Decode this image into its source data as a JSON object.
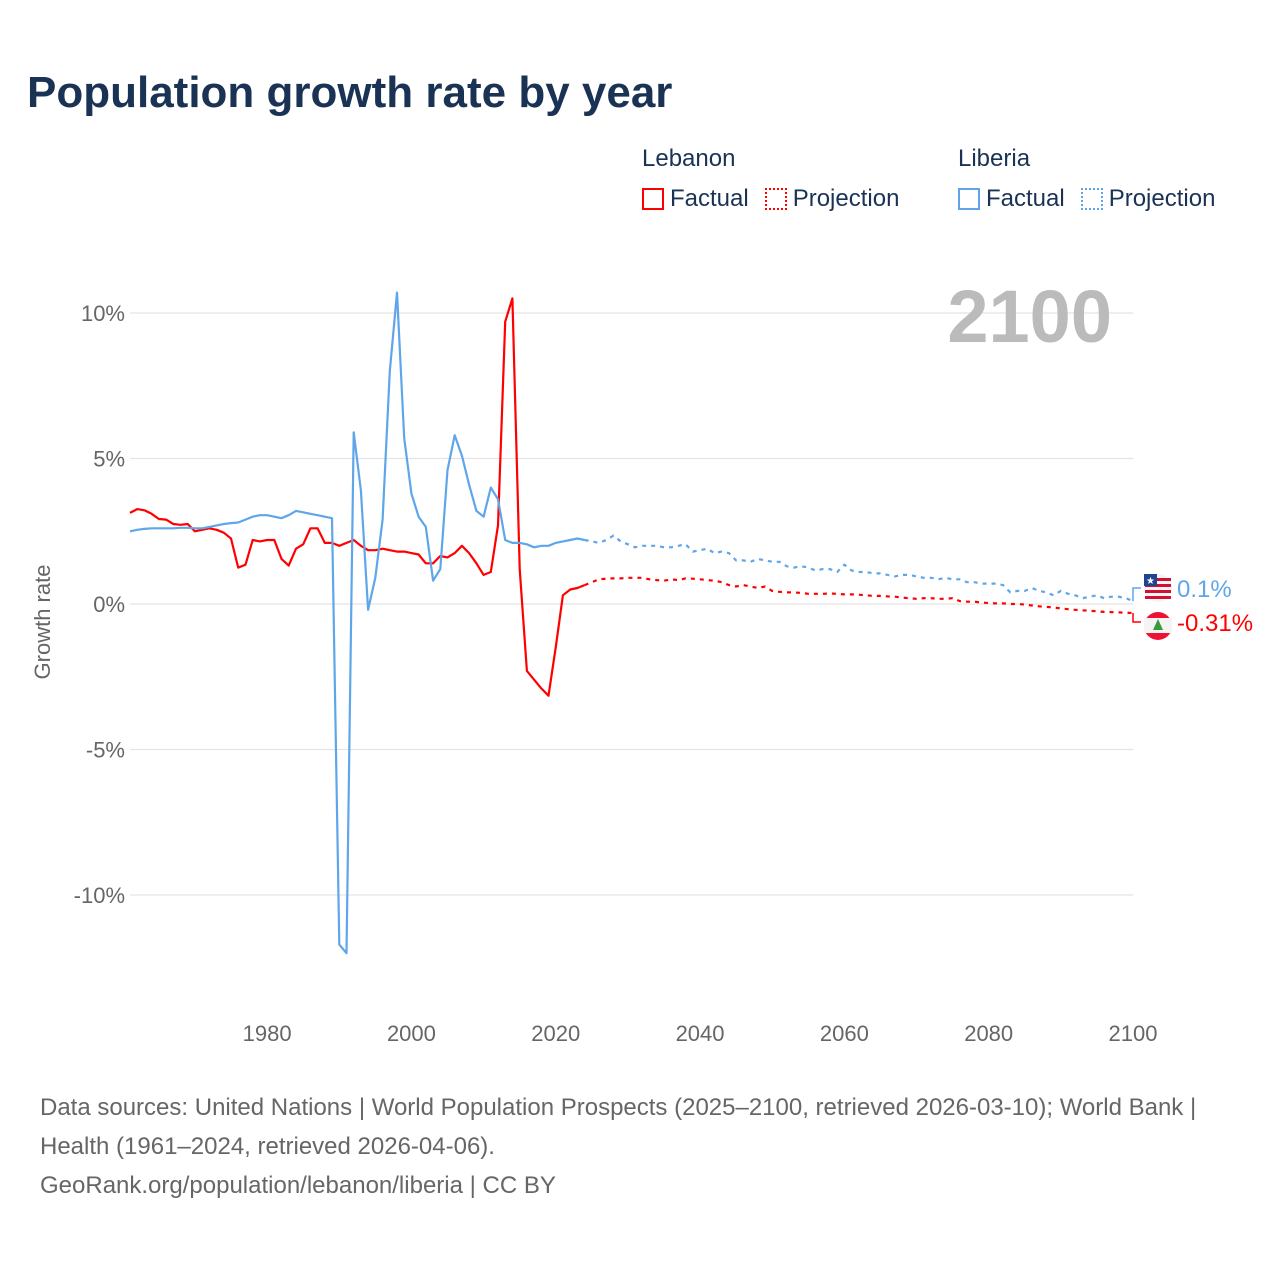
{
  "title": "Population growth rate by year",
  "legend": [
    {
      "country": "Lebanon",
      "color": "#ff0000",
      "factual_label": "Factual",
      "projection_label": "Projection"
    },
    {
      "country": "Liberia",
      "color": "#5ea6e9",
      "factual_label": "Factual",
      "projection_label": "Projection"
    }
  ],
  "year_display": "2100",
  "chart_data": {
    "type": "line",
    "title": "Population growth rate by year",
    "xlabel": "",
    "ylabel": "Growth rate",
    "xlim": [
      1961,
      2100
    ],
    "ylim": [
      -13,
      11.5
    ],
    "x_ticks": [
      1980,
      2000,
      2020,
      2040,
      2060,
      2080,
      2100
    ],
    "x_tick_labels": [
      "1980",
      "2000",
      "2020",
      "2040",
      "2060",
      "2080",
      "2100"
    ],
    "y_ticks": [
      10,
      5,
      0,
      -5,
      -10
    ],
    "y_tick_labels": [
      "10%",
      "5%",
      "0%",
      "-5%",
      "-10%"
    ],
    "grid": true,
    "series": [
      {
        "name": "Lebanon",
        "color": "#ff0000",
        "end_label": "-0.31%",
        "factual_start": 1961,
        "factual": [
          3.13,
          3.26,
          3.22,
          3.1,
          2.92,
          2.9,
          2.75,
          2.72,
          2.75,
          2.5,
          2.55,
          2.6,
          2.55,
          2.45,
          2.25,
          1.25,
          1.35,
          2.2,
          2.15,
          2.2,
          2.2,
          1.55,
          1.32,
          1.9,
          2.05,
          2.6,
          2.6,
          2.1,
          2.1,
          2.0,
          2.1,
          2.2,
          2.0,
          1.85,
          1.85,
          1.9,
          1.85,
          1.8,
          1.8,
          1.75,
          1.7,
          1.4,
          1.4,
          1.65,
          1.6,
          1.75,
          2.0,
          1.75,
          1.4,
          1.0,
          1.1,
          2.7,
          9.7,
          10.5,
          1.2,
          -2.3,
          -2.6,
          -2.9,
          -3.15,
          -1.5,
          0.3,
          0.5,
          0.55,
          0.65
        ],
        "projection_start": 2025,
        "projection": [
          0.75,
          0.85,
          0.87,
          0.88,
          0.88,
          0.9,
          0.9,
          0.9,
          0.85,
          0.82,
          0.8,
          0.85,
          0.82,
          0.88,
          0.87,
          0.85,
          0.82,
          0.8,
          0.75,
          0.65,
          0.6,
          0.65,
          0.6,
          0.55,
          0.6,
          0.45,
          0.42,
          0.4,
          0.4,
          0.38,
          0.35,
          0.35,
          0.35,
          0.36,
          0.35,
          0.33,
          0.33,
          0.32,
          0.3,
          0.28,
          0.28,
          0.26,
          0.25,
          0.22,
          0.2,
          0.18,
          0.2,
          0.2,
          0.18,
          0.18,
          0.2,
          0.1,
          0.08,
          0.08,
          0.05,
          0.03,
          0.02,
          0.02,
          0.0,
          0.0,
          -0.02,
          -0.05,
          -0.08,
          -0.1,
          -0.12,
          -0.15,
          -0.18,
          -0.2,
          -0.22,
          -0.23,
          -0.25,
          -0.27,
          -0.28,
          -0.29,
          -0.3,
          -0.31
        ]
      },
      {
        "name": "Liberia",
        "color": "#5ea6e9",
        "end_label": "0.1%",
        "factual_start": 1961,
        "factual": [
          2.5,
          2.55,
          2.58,
          2.6,
          2.6,
          2.6,
          2.6,
          2.62,
          2.62,
          2.6,
          2.6,
          2.65,
          2.7,
          2.75,
          2.78,
          2.8,
          2.9,
          3.0,
          3.05,
          3.05,
          3.0,
          2.95,
          3.05,
          3.2,
          3.15,
          3.1,
          3.05,
          3.0,
          2.95,
          -11.7,
          -12.0,
          5.9,
          3.9,
          -0.2,
          0.9,
          2.9,
          8.0,
          10.7,
          5.7,
          3.8,
          3.0,
          2.65,
          0.8,
          1.2,
          4.6,
          5.8,
          5.1,
          4.1,
          3.2,
          3.0,
          4.0,
          3.6,
          2.2,
          2.1,
          2.1,
          2.05,
          1.95,
          2.0,
          2.0,
          2.1,
          2.15,
          2.2,
          2.25,
          2.2
        ],
        "projection_start": 2025,
        "projection": [
          2.15,
          2.1,
          2.2,
          2.35,
          2.15,
          2.05,
          1.95,
          2.0,
          2.0,
          2.0,
          1.95,
          1.95,
          2.0,
          2.05,
          1.8,
          1.85,
          1.9,
          1.75,
          1.8,
          1.75,
          1.5,
          1.5,
          1.45,
          1.55,
          1.5,
          1.45,
          1.45,
          1.3,
          1.25,
          1.3,
          1.25,
          1.15,
          1.2,
          1.2,
          1.1,
          1.35,
          1.15,
          1.1,
          1.1,
          1.05,
          1.05,
          1.0,
          0.95,
          1.0,
          1.0,
          0.95,
          0.9,
          0.9,
          0.85,
          0.9,
          0.85,
          0.85,
          0.75,
          0.75,
          0.7,
          0.7,
          0.7,
          0.65,
          0.4,
          0.45,
          0.45,
          0.55,
          0.45,
          0.4,
          0.3,
          0.45,
          0.35,
          0.3,
          0.2,
          0.25,
          0.3,
          0.2,
          0.25,
          0.25,
          0.2,
          0.1
        ]
      }
    ]
  },
  "footer": {
    "sources": "Data sources: United Nations | World Population Prospects (2025–2100, retrieved 2026-03-10); World Bank | Health (1961–2024, retrieved 2026-04-06).",
    "credit": "GeoRank.org/population/lebanon/liberia | CC BY"
  }
}
